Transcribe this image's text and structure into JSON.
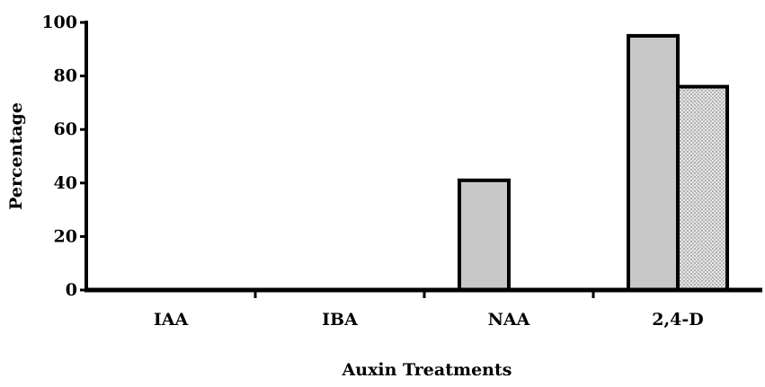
{
  "chart_data": {
    "type": "bar",
    "title": "",
    "xlabel": "Auxin Treatments",
    "ylabel": "Percentage",
    "ylim": [
      0,
      100
    ],
    "yticks": [
      0,
      20,
      40,
      60,
      80,
      100
    ],
    "categories": [
      "IAA",
      "IBA",
      "NAA",
      "2,4-D"
    ],
    "series": [
      {
        "values": [
          0,
          0,
          41,
          95
        ],
        "color": "#c8c8c8",
        "pattern": "solid"
      },
      {
        "values": [
          0,
          0,
          0,
          76
        ],
        "color": "#dcdcdc",
        "pattern": "dotted"
      }
    ],
    "grid": false,
    "legend": "none"
  }
}
